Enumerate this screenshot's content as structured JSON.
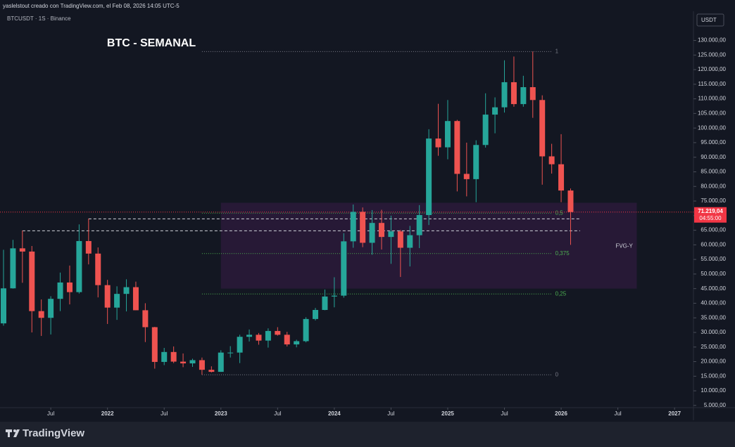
{
  "header": {
    "credit": "yaslelstout creado con TradingView.com, el Feb 08, 2026 14:05 UTC-5",
    "symbol": "BTCUSDT · 1S · Binance",
    "currency": "USDT",
    "brand": "TradingView"
  },
  "chart_data": {
    "type": "candlestick",
    "title": "BTC - SEMANAL",
    "x": [
      "2021-02",
      "2021-03",
      "2021-04",
      "2021-05",
      "2021-06",
      "2021-07",
      "2021-08",
      "2021-09",
      "2021-10",
      "2021-11",
      "2021-12",
      "2022-01",
      "2022-02",
      "2022-03",
      "2022-04",
      "2022-05",
      "2022-06",
      "2022-07",
      "2022-08",
      "2022-09",
      "2022-10",
      "2022-11",
      "2022-12",
      "2023-01",
      "2023-02",
      "2023-03",
      "2023-04",
      "2023-05",
      "2023-06",
      "2023-07",
      "2023-08",
      "2023-09",
      "2023-10",
      "2023-11",
      "2023-12",
      "2024-01",
      "2024-02",
      "2024-03",
      "2024-04",
      "2024-05",
      "2024-06",
      "2024-07",
      "2024-08",
      "2024-09",
      "2024-10",
      "2024-11",
      "2024-12",
      "2025-01",
      "2025-02",
      "2025-03",
      "2025-04",
      "2025-05",
      "2025-06",
      "2025-07",
      "2025-08",
      "2025-09",
      "2025-10",
      "2025-11",
      "2025-12",
      "2026-01",
      "2026-02"
    ],
    "open": [
      33100,
      45100,
      58800,
      57700,
      37300,
      35000,
      41500,
      47100,
      43800,
      61300,
      57000,
      46200,
      38500,
      43200,
      45500,
      37600,
      31800,
      19900,
      23300,
      20000,
      19400,
      20500,
      17200,
      16500,
      23100,
      23100,
      28500,
      29200,
      27200,
      30500,
      29200,
      25900,
      27000,
      34600,
      37700,
      42300,
      42600,
      61200,
      71300,
      60700,
      67500,
      62700,
      64600,
      59000,
      63300,
      70200,
      96400,
      93400,
      102400,
      84300,
      82500,
      94200,
      104600,
      107100,
      115700,
      108200,
      114000,
      109600,
      90300,
      87600,
      78600
    ],
    "high": [
      58300,
      61700,
      64900,
      59600,
      41300,
      42400,
      50500,
      52900,
      67000,
      69000,
      59100,
      48000,
      45800,
      48200,
      47400,
      40000,
      31900,
      24700,
      25200,
      22800,
      21000,
      21400,
      18400,
      23900,
      25300,
      29200,
      31000,
      29800,
      31400,
      31800,
      30200,
      27500,
      35200,
      38400,
      44700,
      48900,
      64000,
      73800,
      72800,
      71900,
      72000,
      70000,
      65100,
      66500,
      73600,
      99600,
      108300,
      109600,
      102800,
      95000,
      95800,
      111900,
      110500,
      123200,
      124500,
      117900,
      126200,
      111200,
      94600,
      97900,
      79300
    ],
    "low": [
      32300,
      45000,
      47000,
      30000,
      28800,
      29300,
      37300,
      39600,
      43300,
      53300,
      42000,
      32900,
      34300,
      37200,
      37600,
      26700,
      17600,
      18800,
      19500,
      18100,
      18200,
      15500,
      16300,
      16500,
      21400,
      19500,
      26900,
      25800,
      24800,
      28900,
      25200,
      24900,
      26600,
      34100,
      37600,
      38600,
      41900,
      59000,
      59200,
      56600,
      58400,
      53500,
      49000,
      52600,
      58900,
      66800,
      90500,
      89300,
      78300,
      76600,
      74600,
      93300,
      98200,
      105300,
      107300,
      107300,
      103500,
      80600,
      84400,
      74600,
      60000
    ],
    "close": [
      45100,
      58800,
      57700,
      37300,
      35000,
      41500,
      47100,
      43800,
      61300,
      57000,
      46200,
      38500,
      43200,
      45500,
      37600,
      31800,
      19900,
      23300,
      20000,
      19400,
      20500,
      17200,
      16500,
      23100,
      23100,
      28500,
      29200,
      27200,
      30500,
      29200,
      25900,
      27000,
      34600,
      37700,
      42300,
      42600,
      61200,
      71300,
      60700,
      67500,
      62700,
      64600,
      59000,
      63300,
      70200,
      96400,
      93400,
      102400,
      84300,
      82500,
      94200,
      104600,
      107100,
      115700,
      108200,
      114000,
      109600,
      90300,
      87600,
      78600,
      71219.04
    ],
    "up_color": "#26a69a",
    "down_color": "#ef5350",
    "xlim": [
      "2021-02",
      "2027-03"
    ],
    "xticks": [
      {
        "value": "2021-07",
        "label": "Jul"
      },
      {
        "value": "2022-01",
        "label": "2022"
      },
      {
        "value": "2022-07",
        "label": "Jul"
      },
      {
        "value": "2023-01",
        "label": "2023"
      },
      {
        "value": "2023-07",
        "label": "Jul"
      },
      {
        "value": "2024-01",
        "label": "2024"
      },
      {
        "value": "2024-07",
        "label": "Jul"
      },
      {
        "value": "2025-01",
        "label": "2025"
      },
      {
        "value": "2025-07",
        "label": "Jul"
      },
      {
        "value": "2026-01",
        "label": "2026"
      },
      {
        "value": "2026-07",
        "label": "Jul"
      },
      {
        "value": "2027-01",
        "label": "2027"
      }
    ],
    "ylim": [
      4000,
      140000
    ],
    "yticks": [
      {
        "value": 5000,
        "label": "5.000,00"
      },
      {
        "value": 10000,
        "label": "10.000,00"
      },
      {
        "value": 15000,
        "label": "15.000,00"
      },
      {
        "value": 20000,
        "label": "20.000,00"
      },
      {
        "value": 25000,
        "label": "25.000,00"
      },
      {
        "value": 30000,
        "label": "30.000,00"
      },
      {
        "value": 35000,
        "label": "35.000,00"
      },
      {
        "value": 40000,
        "label": "40.000,00"
      },
      {
        "value": 45000,
        "label": "45.000,00"
      },
      {
        "value": 50000,
        "label": "50.000,00"
      },
      {
        "value": 55000,
        "label": "55.000,00"
      },
      {
        "value": 60000,
        "label": "60.000,00"
      },
      {
        "value": 65000,
        "label": "65.000,00"
      },
      {
        "value": 70000,
        "label": "70.000,00"
      },
      {
        "value": 75000,
        "label": "75.000,00"
      },
      {
        "value": 80000,
        "label": "80.000,00"
      },
      {
        "value": 85000,
        "label": "85.000,00"
      },
      {
        "value": 90000,
        "label": "90.000,00"
      },
      {
        "value": 95000,
        "label": "95.000,00"
      },
      {
        "value": 100000,
        "label": "100.000,00"
      },
      {
        "value": 105000,
        "label": "105.000,00"
      },
      {
        "value": 110000,
        "label": "110.000,00"
      },
      {
        "value": 115000,
        "label": "115.000,00"
      },
      {
        "value": 120000,
        "label": "120.000,00"
      },
      {
        "value": 125000,
        "label": "125.000,00"
      },
      {
        "value": 130000,
        "label": "130.000,00"
      }
    ],
    "last_price": {
      "value": 71219.04,
      "value_label": "71.219,04",
      "countdown": "04:55:00",
      "color": "#f23645"
    },
    "fib_levels": [
      {
        "ratio": 1,
        "price": 126200,
        "color": "#787b86"
      },
      {
        "ratio": {
          "value": 0.5,
          "label": "0,5"
        },
        "price": 70850,
        "color": "#4caf50"
      },
      {
        "ratio": {
          "value": 0.375,
          "label": "0,375"
        },
        "price": 57010,
        "color": "#4caf50"
      },
      {
        "ratio": {
          "value": 0.25,
          "label": "0,25"
        },
        "price": 43175,
        "color": "#4caf50"
      },
      {
        "ratio": 0,
        "price": 15500,
        "color": "#787b86"
      }
    ],
    "fib_start": "2022-11",
    "fib_end": "2025-12",
    "zone": {
      "label": "FVG-Y",
      "top": 74400,
      "bottom": 45000,
      "label_price": 59500,
      "start": "2023-01",
      "end": "2026-09",
      "color": "#9c27b0"
    },
    "levels": [
      {
        "price": 68900,
        "start": "2021-11",
        "end": "2026-03",
        "color": "#d1d4dc"
      },
      {
        "price": 64800,
        "start": "2021-04",
        "end": "2026-03",
        "color": "#d1d4dc"
      }
    ]
  }
}
